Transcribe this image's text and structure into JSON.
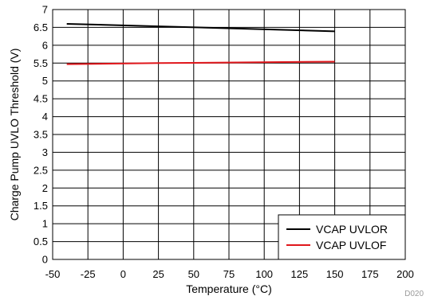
{
  "chart_data": {
    "type": "line",
    "title": "",
    "xlabel": "Temperature (°C)",
    "ylabel": "Charge Pump UVLO Threshold (V)",
    "xlim": [
      -50,
      200
    ],
    "ylim": [
      0,
      7
    ],
    "xticks": [
      -50,
      -25,
      0,
      25,
      50,
      75,
      100,
      125,
      150,
      175,
      200
    ],
    "xtick_labels": [
      "-50",
      "-25",
      "0",
      "25",
      "50",
      "75",
      "100",
      "125",
      "150",
      "175",
      "200"
    ],
    "yticks": [
      0,
      0.5,
      1,
      1.5,
      2,
      2.5,
      3,
      3.5,
      4,
      4.5,
      5,
      5.5,
      6,
      6.5,
      7
    ],
    "ytick_labels": [
      "0",
      "0.5",
      "1",
      "1.5",
      "2",
      "2.5",
      "3",
      "3.5",
      "4",
      "4.5",
      "5",
      "5.5",
      "6",
      "6.5",
      "7"
    ],
    "grid": true,
    "legend_position": "bottom-right",
    "series": [
      {
        "name": "VCAP UVLOR",
        "color": "#000000",
        "x": [
          -40,
          25,
          150
        ],
        "values": [
          6.6,
          6.53,
          6.39
        ]
      },
      {
        "name": "VCAP UVLOF",
        "color": "#e0161b",
        "x": [
          -40,
          25,
          150
        ],
        "values": [
          5.47,
          5.5,
          5.54
        ]
      }
    ],
    "figure_code": "D020"
  }
}
